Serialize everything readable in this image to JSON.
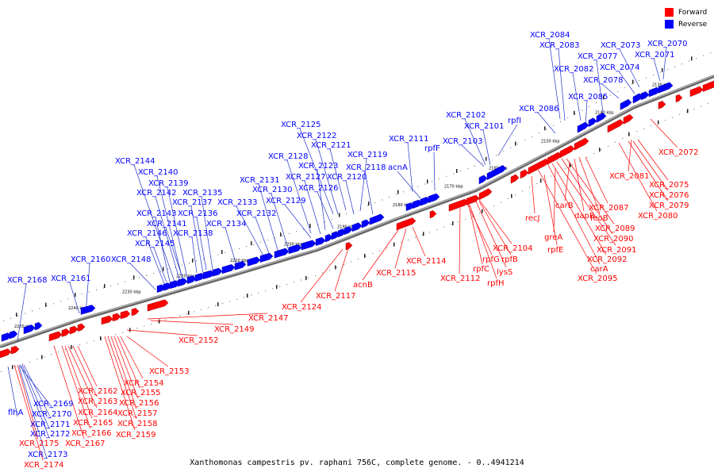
{
  "legend": {
    "forward_label": "Forward",
    "reverse_label": "Reverse",
    "forward_color": "#ff0000",
    "reverse_color": "#0000ff"
  },
  "caption": "Xanthomonas campestris pv. raphani 756C, complete genome. - 0..4941214",
  "ticks": [
    "2130 kbp",
    "2140 kbp",
    "2150 kbp",
    "2160 kbp",
    "2170 kbp",
    "2180 kbp",
    "2190 kbp",
    "2200 kbp",
    "2210 kbp",
    "2220 kbp",
    "2230 kbp",
    "2240 kbp",
    "2250 kbp"
  ],
  "reverse_labels": [
    "XCR_2084",
    "XCR_2083",
    "XCR_2073",
    "XCR_2070",
    "XCR_2077",
    "XCR_2071",
    "XCR_2082",
    "XCR_2074",
    "XCR_2078",
    "XCR_2085",
    "XCR_2086",
    "XCR_2102",
    "rpfI",
    "XCR_2101",
    "XCR_2103",
    "XCR_2111",
    "rpfF",
    "acnA",
    "XCR_2125",
    "XCR_2122",
    "XCR_2121",
    "XCR_2128",
    "XCR_2119",
    "XCR_2123",
    "XCR_2118",
    "XCR_2127",
    "XCR_2120",
    "XCR_2131",
    "XCR_2126",
    "XCR_2130",
    "XCR_2129",
    "XCR_2133",
    "XCR_2132",
    "XCR_2144",
    "XCR_2140",
    "XCR_2139",
    "XCR_2142",
    "XCR_2135",
    "XCR_2137",
    "XCR_2143",
    "XCR_2136",
    "XCR_2141",
    "XCR_2134",
    "XCR_2146",
    "XCR_2138",
    "XCR_2145",
    "XCR_2160",
    "XCR_2148",
    "XCR_2161",
    "XCR_2168",
    "flhA",
    "XCR_2169",
    "XCR_2170",
    "XCR_2171",
    "XCR_2172",
    "XCR_2173"
  ],
  "forward_labels": [
    "XCR_2072",
    "XCR_2081",
    "XCR_2075",
    "XCR_2076",
    "XCR_2079",
    "XCR_2080",
    "XCR_2087",
    "dapB",
    "feoB",
    "carB",
    "recJ",
    "XCR_2089",
    "greA",
    "XCR_2090",
    "rpfE",
    "XCR_2091",
    "XCR_2092",
    "carA",
    "XCR_2095",
    "XCR_2104",
    "rpfG",
    "rpfB",
    "rpfC",
    "lysS",
    "rpfH",
    "XCR_2112",
    "XCR_2114",
    "XCR_2115",
    "acnB",
    "XCR_2117",
    "XCR_2124",
    "XCR_2147",
    "XCR_2149",
    "XCR_2152",
    "XCR_2153",
    "XCR_2154",
    "XCR_2155",
    "XCR_2156",
    "XCR_2157",
    "XCR_2158",
    "XCR_2159",
    "XCR_2162",
    "XCR_2163",
    "XCR_2164",
    "XCR_2165",
    "XCR_2166",
    "XCR_2167",
    "XCR_2175",
    "XCR_2174"
  ]
}
